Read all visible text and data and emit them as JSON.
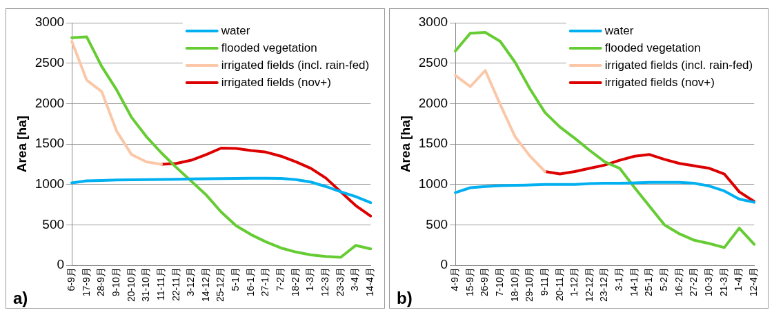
{
  "chart_data": [
    {
      "type": "line",
      "ylabel": "Area [ha]",
      "annotations": [
        "a)"
      ],
      "categories": [
        "6-9月",
        "17-9月",
        "28-9月",
        "9-10月",
        "20-10月",
        "31-10月",
        "11-11月",
        "22-11月",
        "3-12月",
        "14-12月",
        "25-12月",
        "5-1月",
        "16-1月",
        "27-1月",
        "7-2月",
        "18-2月",
        "1-3月",
        "12-3月",
        "23-3月",
        "3-4月",
        "14-4月"
      ],
      "series": [
        {
          "name": "water",
          "color": "#00b0f0",
          "values": [
            1020,
            1045,
            1050,
            1055,
            1058,
            1060,
            1063,
            1065,
            1068,
            1070,
            1073,
            1075,
            1078,
            1078,
            1075,
            1060,
            1030,
            975,
            910,
            850,
            775
          ]
        },
        {
          "name": "flooded vegetation",
          "color": "#66cc33",
          "values": [
            2815,
            2825,
            2460,
            2170,
            1830,
            1590,
            1390,
            1210,
            1040,
            870,
            660,
            490,
            380,
            290,
            215,
            165,
            130,
            110,
            100,
            246,
            204
          ]
        },
        {
          "name": "irrigated fields (incl. rain-fed)",
          "color": "#fac8a8",
          "values": [
            2770,
            2290,
            2150,
            1660,
            1370,
            1280,
            1250,
            null,
            null,
            null,
            null,
            null,
            null,
            null,
            null,
            null,
            null,
            null,
            null,
            null,
            null
          ]
        },
        {
          "name": "irrigated fields (nov+)",
          "color": "#dd0000",
          "values": [
            null,
            null,
            null,
            null,
            null,
            null,
            1250,
            1260,
            1300,
            1370,
            1450,
            1445,
            1420,
            1400,
            1350,
            1280,
            1200,
            1080,
            910,
            740,
            610
          ]
        }
      ],
      "ylim": [
        0,
        3000
      ],
      "yticks": [
        0,
        500,
        1000,
        1500,
        2000,
        2500,
        3000
      ],
      "grid": "y",
      "legend": "top right",
      "marker": "none",
      "line_style": "solid"
    },
    {
      "type": "line",
      "ylabel": "Area [ha]",
      "annotations": [
        "b)"
      ],
      "categories": [
        "4-9月",
        "15-9月",
        "26-9月",
        "7-10月",
        "18-10月",
        "29-10月",
        "9-11月",
        "20-11月",
        "1-12月",
        "12-12月",
        "23-12月",
        "3-1月",
        "14-1月",
        "25-1月",
        "5-2月",
        "16-2月",
        "27-2月",
        "10-3月",
        "21-3月",
        "1-4月",
        "12-4月"
      ],
      "series": [
        {
          "name": "water",
          "color": "#00b0f0",
          "values": [
            900,
            960,
            975,
            985,
            990,
            993,
            1000,
            1000,
            1000,
            1010,
            1015,
            1015,
            1020,
            1025,
            1025,
            1025,
            1015,
            980,
            920,
            820,
            780
          ]
        },
        {
          "name": "flooded vegetation",
          "color": "#66cc33",
          "values": [
            2650,
            2870,
            2880,
            2770,
            2510,
            2180,
            1890,
            1710,
            1570,
            1420,
            1280,
            1200,
            960,
            730,
            500,
            390,
            310,
            270,
            220,
            460,
            260
          ]
        },
        {
          "name": "irrigated fields (incl. rain-fed)",
          "color": "#fac8a8",
          "values": [
            2350,
            2210,
            2410,
            1990,
            1590,
            1350,
            1160,
            null,
            null,
            null,
            null,
            null,
            null,
            null,
            null,
            null,
            null,
            null,
            null,
            null,
            null
          ]
        },
        {
          "name": "irrigated fields (nov+)",
          "color": "#dd0000",
          "values": [
            null,
            null,
            null,
            null,
            null,
            null,
            1160,
            1130,
            1160,
            1200,
            1240,
            1300,
            1350,
            1370,
            1310,
            1260,
            1230,
            1200,
            1130,
            910,
            790
          ]
        }
      ],
      "ylim": [
        0,
        3000
      ],
      "yticks": [
        0,
        500,
        1000,
        1500,
        2000,
        2500,
        3000
      ],
      "grid": "y",
      "legend": "top right",
      "marker": "none",
      "line_style": "solid"
    }
  ]
}
